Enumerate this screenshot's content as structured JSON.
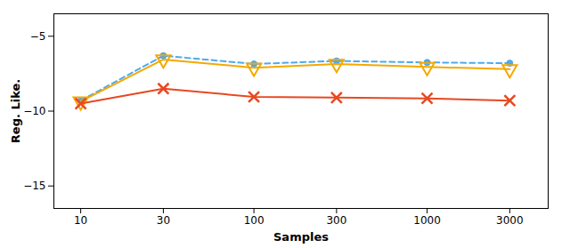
{
  "chart_data": {
    "type": "line",
    "xlabel": "Samples",
    "ylabel": "Reg. Like.",
    "x": [
      10,
      30,
      100,
      300,
      1000,
      3000
    ],
    "log": "x",
    "xlim": [
      7,
      5000
    ],
    "xticks": [
      10,
      30,
      100,
      300,
      1000,
      3000
    ],
    "ylim": [
      -16.5,
      -3.5
    ],
    "yticks": [
      -5,
      -10,
      -15
    ],
    "grid": false,
    "series": [
      {
        "color": "#4daaee",
        "marker": "circle",
        "line_style": "dashed",
        "values": [
          -9.3,
          -6.3,
          -6.85,
          -6.65,
          -6.75,
          -6.8
        ]
      },
      {
        "color": "#f5a800",
        "marker": "triangle_down_open",
        "line_style": "solid",
        "values": [
          -9.35,
          -6.55,
          -7.1,
          -6.85,
          -7.05,
          -7.2
        ]
      },
      {
        "color": "#e84820",
        "marker": "x",
        "line_style": "solid",
        "values": [
          -9.5,
          -8.5,
          -9.05,
          -9.1,
          -9.15,
          -9.3
        ]
      }
    ]
  }
}
